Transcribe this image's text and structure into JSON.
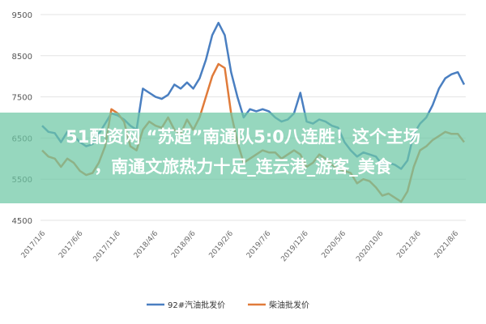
{
  "chart_data": {
    "type": "line",
    "ylim": [
      4500,
      9500
    ],
    "yticks": [
      4500,
      5500,
      6500,
      7500,
      8500,
      9500
    ],
    "xticks": [
      "2017/1/6",
      "2017/6/6",
      "2017/11/6",
      "2018/4/6",
      "2018/9/6",
      "2019/2/6",
      "2019/7/6",
      "2019/12/6",
      "2020/5/6",
      "2020/10/6",
      "2021/3/6",
      "2021/8/6"
    ],
    "grid": true,
    "legend": "bottom-center",
    "series": [
      {
        "name": "92#汽油批发价",
        "color": "#4a7fc1",
        "values": [
          6800,
          6650,
          6620,
          6400,
          6650,
          6550,
          6400,
          6300,
          6350,
          6600,
          6850,
          7100,
          7050,
          6950,
          6800,
          6700,
          7700,
          7600,
          7500,
          7450,
          7550,
          7800,
          7700,
          7850,
          7700,
          7950,
          8400,
          9000,
          9300,
          9000,
          8100,
          7500,
          7000,
          7200,
          7150,
          7200,
          7150,
          7000,
          6900,
          6950,
          7100,
          7600,
          6900,
          6850,
          6950,
          6900,
          6800,
          6750,
          6400,
          6200,
          6050,
          6150,
          6100,
          6050,
          5850,
          5900,
          5850,
          5750,
          5950,
          6600,
          6850,
          7000,
          7300,
          7700,
          7950,
          8050,
          8100,
          7800
        ]
      },
      {
        "name": "柴油批发价",
        "color": "#e07b3a",
        "values": [
          6200,
          6050,
          6000,
          5800,
          6000,
          5900,
          5700,
          5600,
          5650,
          5900,
          6300,
          7200,
          7100,
          6900,
          6300,
          6200,
          6700,
          6900,
          6800,
          6750,
          7000,
          6700,
          6600,
          6950,
          6700,
          7000,
          7500,
          8000,
          8300,
          8200,
          7100,
          6400,
          5900,
          6000,
          6100,
          6200,
          6150,
          6150,
          6000,
          6100,
          6200,
          6100,
          5800,
          5900,
          6100,
          6000,
          5850,
          5750,
          5700,
          5650,
          5400,
          5500,
          5450,
          5300,
          5100,
          5150,
          5050,
          4950,
          5200,
          5800,
          6200,
          6300,
          6450,
          6550,
          6650,
          6600,
          6600,
          6400
        ]
      }
    ]
  },
  "overlay": {
    "line1": "51配资网 “苏超”南通队5:0八连胜！这个主场",
    "line2": "，南通文旅热力十足_连云港_游客_美食"
  }
}
